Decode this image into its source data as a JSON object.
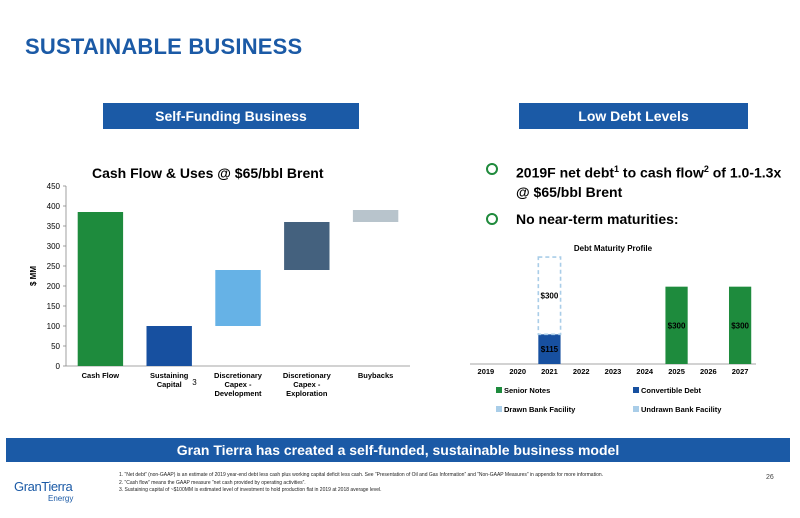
{
  "header": {
    "title": "SUSTAINABLE BUSINESS"
  },
  "left_panel": {
    "banner": "Self-Funding Business",
    "chart_title": "Cash Flow & Uses @ $65/bbl Brent"
  },
  "right_panel": {
    "banner": "Low Debt Levels",
    "bullets": [
      {
        "text_a": "2019F net debt",
        "sup1": "1",
        "text_b": " to cash flow",
        "sup2": "2",
        "text_c": " of 1.0-1.3x @ $65/bbl Brent"
      },
      {
        "text": "No near-term maturities:"
      }
    ]
  },
  "bottom_banner": "Gran Tierra has created a self-funded, sustainable business model",
  "footnotes": [
    "1.   “Net debt” (non-GAAP) is an estimate of 2019 year-end debt less cash plus working capital deficit less cash. See “Presentation of Oil and Gas Information” and “Non-GAAP Measures” in appendix for more information.",
    "2.   “Cash flow” means the GAAP measure “net cash provided by operating activities”.",
    "3.   Sustaining capital of ~$100MM is estimated level of investment to hold production flat in 2019 at 2018 average level."
  ],
  "page_number": "26",
  "logo": {
    "main": "GranTierra",
    "sub": "Energy"
  },
  "colors": {
    "brand_blue": "#1b5aa6",
    "green": "#1e8b3d",
    "navy": "#1750a0",
    "light_blue": "#66b2e6",
    "slate": "#44617e",
    "gray": "#b8c4cc",
    "pale_blue": "#a9cde8"
  },
  "chart_data": [
    {
      "type": "bar",
      "subtype": "waterfall",
      "title": "Cash Flow & Uses @ $65/bbl Brent",
      "ylabel": "$ MM",
      "ylim": [
        0,
        450
      ],
      "yticks": [
        0,
        50,
        100,
        150,
        200,
        250,
        300,
        350,
        400,
        450
      ],
      "categories": [
        "Cash Flow",
        "Sustaining Capital",
        "Discretionary Capex - Development",
        "Discretionary Capex - Exploration",
        "Buybacks"
      ],
      "category_label_lines": [
        [
          "Cash Flow"
        ],
        [
          "Sustaining",
          "Capital"
        ],
        [
          "Discretionary",
          "Capex -",
          "Development"
        ],
        [
          "Discretionary",
          "Capex -",
          "Exploration"
        ],
        [
          "Buybacks"
        ]
      ],
      "sustaining_capital_footnote": "3",
      "bars": [
        {
          "category": "Cash Flow",
          "bottom": 0,
          "top": 385,
          "color": "#1e8b3d"
        },
        {
          "category": "Sustaining Capital",
          "bottom": 0,
          "top": 100,
          "color": "#1750a0"
        },
        {
          "category": "Discretionary Capex - Development",
          "bottom": 100,
          "top": 240,
          "color": "#66b2e6"
        },
        {
          "category": "Discretionary Capex - Exploration",
          "bottom": 240,
          "top": 360,
          "color": "#44617e"
        },
        {
          "category": "Buybacks",
          "bottom": 360,
          "top": 390,
          "color": "#b8c4cc"
        }
      ]
    },
    {
      "type": "bar",
      "subtype": "stacked",
      "title": "Debt Maturity Profile",
      "categories": [
        "2019",
        "2020",
        "2021",
        "2022",
        "2023",
        "2024",
        "2025",
        "2026",
        "2027"
      ],
      "series": [
        {
          "name": "Senior Notes",
          "color": "#1e8b3d",
          "values": [
            0,
            0,
            0,
            0,
            0,
            0,
            300,
            0,
            300
          ],
          "labels": [
            "",
            "",
            "",
            "",
            "",
            "",
            "$300",
            "",
            "$300"
          ]
        },
        {
          "name": "Convertible Debt",
          "color": "#1750a0",
          "values": [
            0,
            0,
            115,
            0,
            0,
            0,
            0,
            0,
            0
          ],
          "labels": [
            "",
            "",
            "$115",
            "",
            "",
            "",
            "",
            "",
            ""
          ]
        },
        {
          "name": "Drawn Bank Facility",
          "color": "#a9cde8",
          "values": [
            0,
            0,
            0,
            0,
            0,
            0,
            0,
            0,
            0
          ],
          "labels": [
            "",
            "",
            "",
            "",
            "",
            "",
            "",
            "",
            ""
          ]
        },
        {
          "name": "Undrawn Bank Facility",
          "color": "#a9cde8",
          "dashed": true,
          "values": [
            0,
            0,
            300,
            0,
            0,
            0,
            0,
            0,
            0
          ],
          "labels": [
            "",
            "",
            "$300",
            "",
            "",
            "",
            "",
            "",
            ""
          ]
        }
      ],
      "ylim": [
        0,
        450
      ],
      "legend": "bottom"
    }
  ]
}
